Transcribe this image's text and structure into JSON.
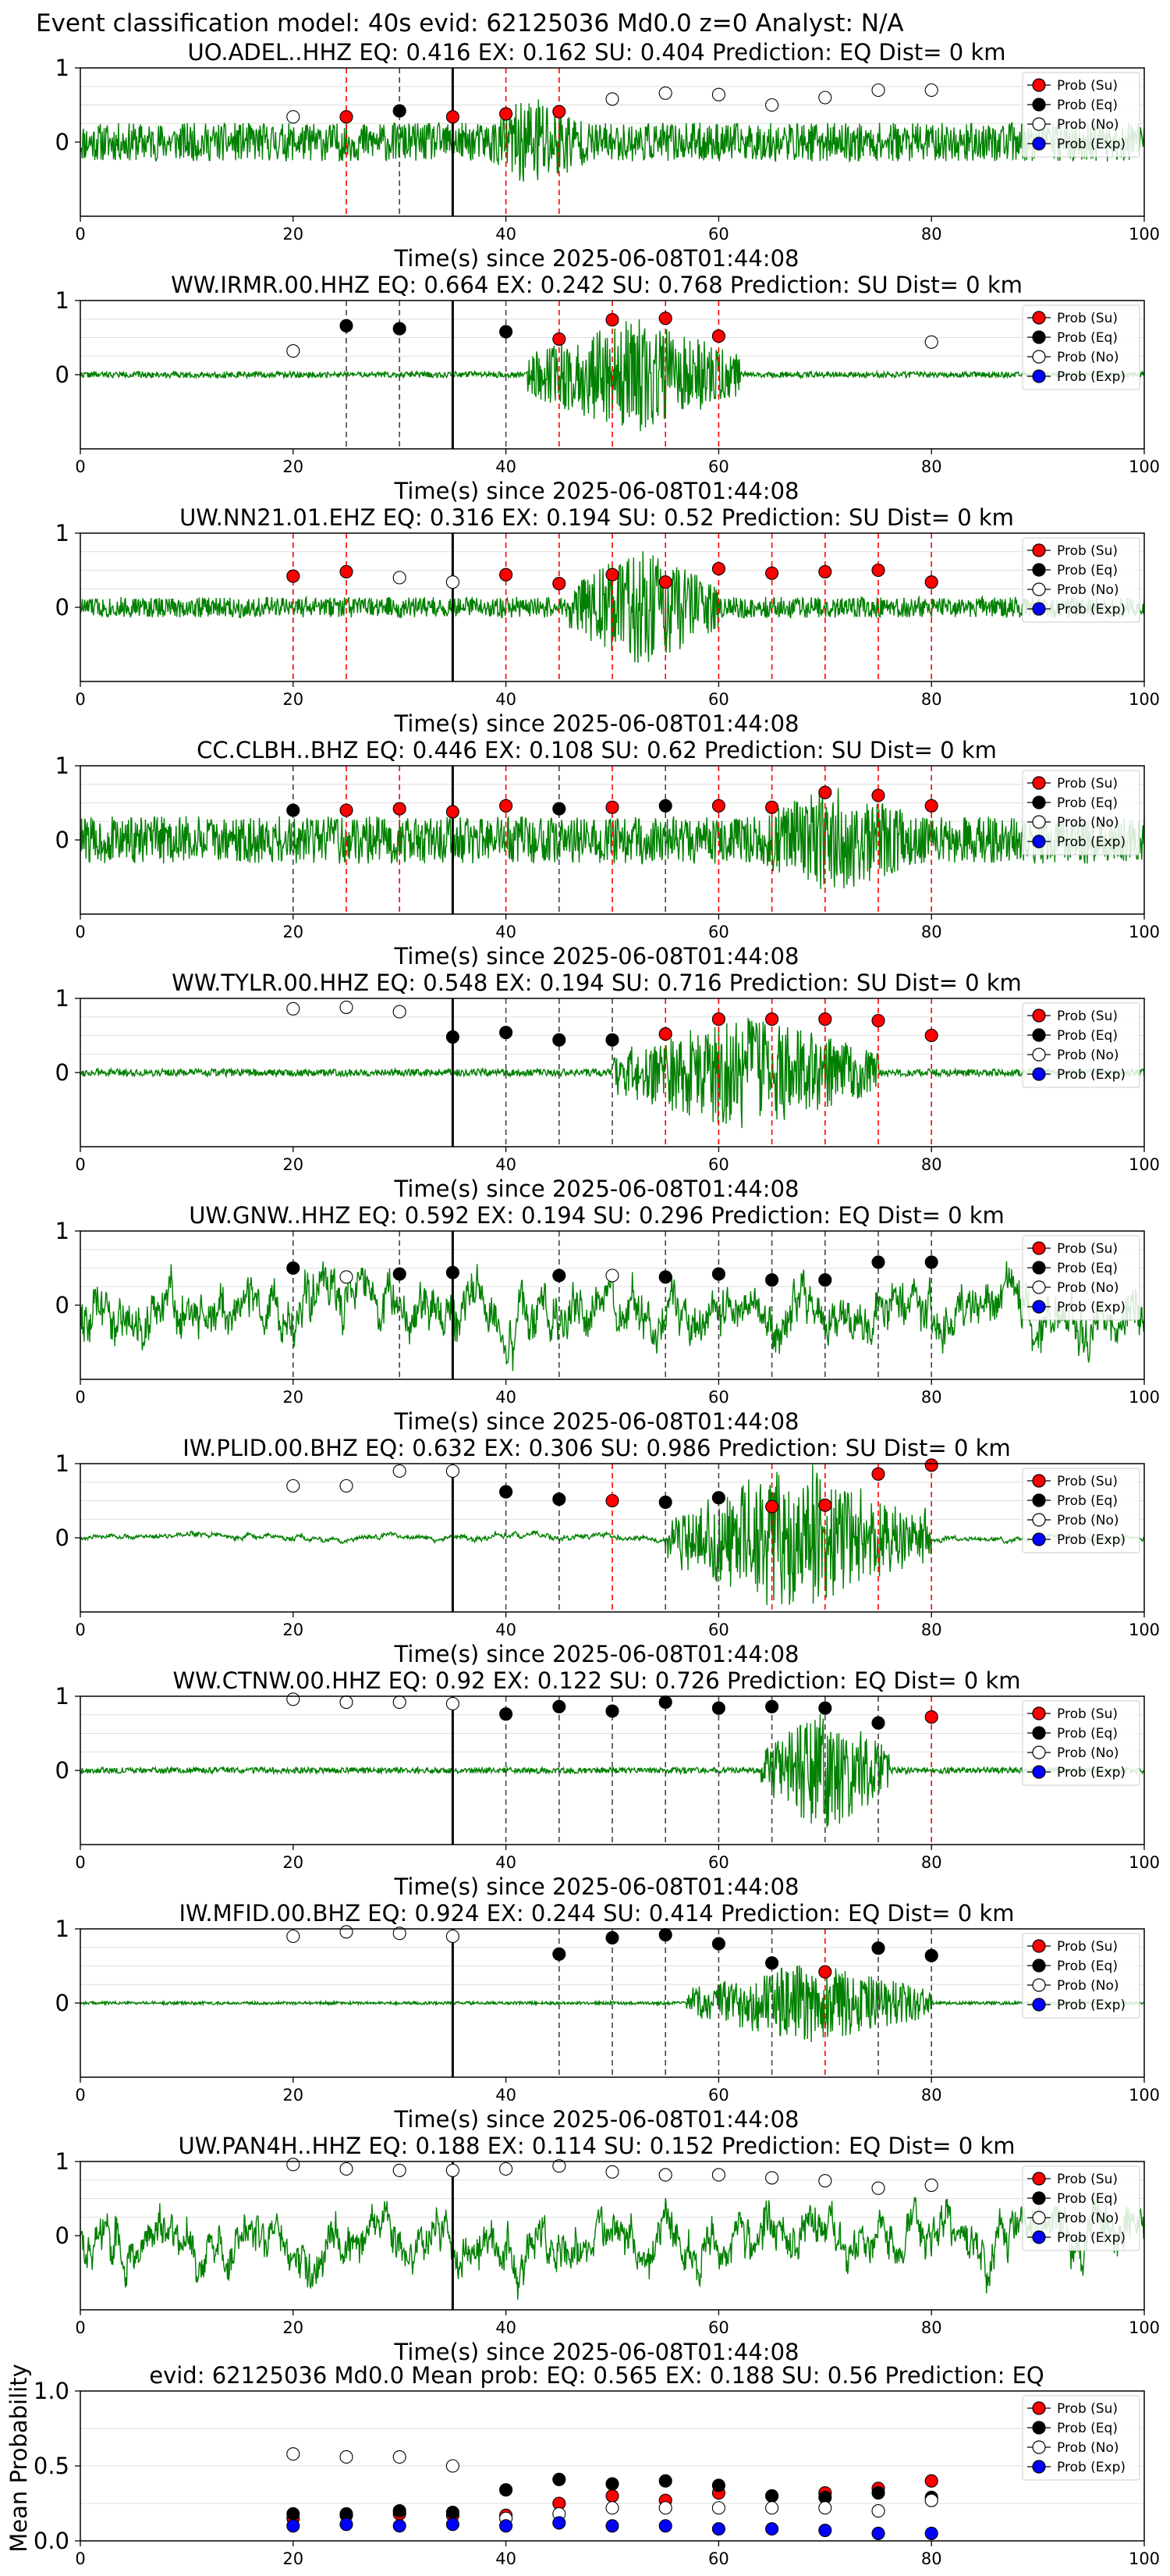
{
  "figure": {
    "title": "Event classification model: 40s evid: 62125036 Md0.0 z=0 Analyst: N/A"
  },
  "legend_labels": [
    "Prob (Su)",
    "Prob (Eq)",
    "Prob (No)",
    "Prob (Exp)"
  ],
  "colors": {
    "su": "#ff0000",
    "eq": "#000000",
    "no": "#ffffff",
    "exp": "#0000ff",
    "waveform": "#008000",
    "eq_line": "#444444",
    "su_line": "#ff0000",
    "grid": "#dddddd"
  },
  "chart_data": [
    {
      "type": "line",
      "title": "UO.ADEL..HHZ   EQ: 0.416  EX: 0.162  SU: 0.404   Prediction: EQ    Dist= 0 km",
      "xlabel": "Time(s) since 2025-06-08T01:44:08",
      "xlim": [
        0,
        100
      ],
      "ylim": [
        -1,
        1
      ],
      "xticks": [
        0,
        20,
        40,
        60,
        80,
        100
      ],
      "yticks": [
        1,
        0
      ],
      "pick_time": 35,
      "waveform": {
        "noise": 0.26,
        "burst_start": 38,
        "burst_end": 48,
        "burst_amp": 0.7,
        "low_freq": false,
        "seed": 11
      },
      "points": [
        {
          "x": 20,
          "y": 0.34,
          "class": "no"
        },
        {
          "x": 25,
          "y": 0.34,
          "class": "su"
        },
        {
          "x": 30,
          "y": 0.42,
          "class": "eq"
        },
        {
          "x": 35,
          "y": 0.34,
          "class": "su"
        },
        {
          "x": 40,
          "y": 0.38,
          "class": "su"
        },
        {
          "x": 45,
          "y": 0.41,
          "class": "su"
        },
        {
          "x": 50,
          "y": 0.58,
          "class": "no"
        },
        {
          "x": 55,
          "y": 0.66,
          "class": "no"
        },
        {
          "x": 60,
          "y": 0.64,
          "class": "no"
        },
        {
          "x": 65,
          "y": 0.5,
          "class": "no"
        },
        {
          "x": 70,
          "y": 0.6,
          "class": "no"
        },
        {
          "x": 75,
          "y": 0.7,
          "class": "no"
        },
        {
          "x": 80,
          "y": 0.7,
          "class": "no"
        }
      ]
    },
    {
      "type": "line",
      "title": "WW.IRMR.00.HHZ   EQ: 0.664  EX: 0.242  SU: 0.768   Prediction: SU    Dist= 0 km",
      "xlabel": "Time(s) since 2025-06-08T01:44:08",
      "xlim": [
        0,
        100
      ],
      "ylim": [
        -1,
        1
      ],
      "xticks": [
        0,
        20,
        40,
        60,
        80,
        100
      ],
      "yticks": [
        1,
        0
      ],
      "pick_time": 35,
      "waveform": {
        "noise": 0.04,
        "burst_start": 42,
        "burst_end": 62,
        "burst_amp": 0.8,
        "low_freq": false,
        "seed": 22
      },
      "points": [
        {
          "x": 20,
          "y": 0.32,
          "class": "no"
        },
        {
          "x": 25,
          "y": 0.66,
          "class": "eq"
        },
        {
          "x": 30,
          "y": 0.62,
          "class": "eq"
        },
        {
          "x": 40,
          "y": 0.58,
          "class": "eq"
        },
        {
          "x": 45,
          "y": 0.48,
          "class": "su"
        },
        {
          "x": 50,
          "y": 0.74,
          "class": "su"
        },
        {
          "x": 55,
          "y": 0.76,
          "class": "su"
        },
        {
          "x": 60,
          "y": 0.52,
          "class": "su"
        },
        {
          "x": 80,
          "y": 0.44,
          "class": "no"
        }
      ]
    },
    {
      "type": "line",
      "title": "UW.NN21.01.EHZ   EQ: 0.316  EX: 0.194  SU: 0.52   Prediction: SU    Dist= 0 km",
      "xlabel": "Time(s) since 2025-06-08T01:44:08",
      "xlim": [
        0,
        100
      ],
      "ylim": [
        -1,
        1
      ],
      "xticks": [
        0,
        20,
        40,
        60,
        80,
        100
      ],
      "yticks": [
        1,
        0
      ],
      "pick_time": 35,
      "waveform": {
        "noise": 0.14,
        "burst_start": 46,
        "burst_end": 60,
        "burst_amp": 0.85,
        "low_freq": false,
        "seed": 33
      },
      "points": [
        {
          "x": 20,
          "y": 0.42,
          "class": "su"
        },
        {
          "x": 25,
          "y": 0.48,
          "class": "su"
        },
        {
          "x": 30,
          "y": 0.4,
          "class": "no"
        },
        {
          "x": 35,
          "y": 0.34,
          "class": "no"
        },
        {
          "x": 40,
          "y": 0.44,
          "class": "su"
        },
        {
          "x": 45,
          "y": 0.32,
          "class": "su"
        },
        {
          "x": 50,
          "y": 0.44,
          "class": "su"
        },
        {
          "x": 55,
          "y": 0.34,
          "class": "su"
        },
        {
          "x": 60,
          "y": 0.52,
          "class": "su"
        },
        {
          "x": 65,
          "y": 0.46,
          "class": "su"
        },
        {
          "x": 70,
          "y": 0.48,
          "class": "su"
        },
        {
          "x": 75,
          "y": 0.5,
          "class": "su"
        },
        {
          "x": 80,
          "y": 0.34,
          "class": "su"
        }
      ]
    },
    {
      "type": "line",
      "title": "CC.CLBH..BHZ   EQ: 0.446  EX: 0.108  SU: 0.62   Prediction: SU    Dist= 0 km",
      "xlabel": "Time(s) since 2025-06-08T01:44:08",
      "xlim": [
        0,
        100
      ],
      "ylim": [
        -1,
        1
      ],
      "xticks": [
        0,
        20,
        40,
        60,
        80,
        100
      ],
      "yticks": [
        1,
        0
      ],
      "pick_time": 35,
      "waveform": {
        "noise": 0.32,
        "burst_start": 62,
        "burst_end": 80,
        "burst_amp": 0.75,
        "low_freq": false,
        "seed": 44
      },
      "points": [
        {
          "x": 20,
          "y": 0.4,
          "class": "eq"
        },
        {
          "x": 25,
          "y": 0.4,
          "class": "su"
        },
        {
          "x": 30,
          "y": 0.42,
          "class": "su"
        },
        {
          "x": 35,
          "y": 0.38,
          "class": "su"
        },
        {
          "x": 40,
          "y": 0.46,
          "class": "su"
        },
        {
          "x": 45,
          "y": 0.42,
          "class": "eq"
        },
        {
          "x": 50,
          "y": 0.44,
          "class": "su"
        },
        {
          "x": 55,
          "y": 0.46,
          "class": "eq"
        },
        {
          "x": 60,
          "y": 0.46,
          "class": "su"
        },
        {
          "x": 65,
          "y": 0.44,
          "class": "su"
        },
        {
          "x": 70,
          "y": 0.64,
          "class": "su"
        },
        {
          "x": 75,
          "y": 0.6,
          "class": "su"
        },
        {
          "x": 80,
          "y": 0.46,
          "class": "su"
        }
      ]
    },
    {
      "type": "line",
      "title": "WW.TYLR.00.HHZ   EQ: 0.548  EX: 0.194  SU: 0.716   Prediction: SU    Dist= 0 km",
      "xlabel": "Time(s) since 2025-06-08T01:44:08",
      "xlim": [
        0,
        100
      ],
      "ylim": [
        -1,
        1
      ],
      "xticks": [
        0,
        20,
        40,
        60,
        80,
        100
      ],
      "yticks": [
        1,
        0
      ],
      "pick_time": 35,
      "waveform": {
        "noise": 0.05,
        "burst_start": 50,
        "burst_end": 75,
        "burst_amp": 0.8,
        "low_freq": false,
        "seed": 55
      },
      "points": [
        {
          "x": 20,
          "y": 0.86,
          "class": "no"
        },
        {
          "x": 25,
          "y": 0.88,
          "class": "no"
        },
        {
          "x": 30,
          "y": 0.82,
          "class": "no"
        },
        {
          "x": 35,
          "y": 0.48,
          "class": "eq"
        },
        {
          "x": 40,
          "y": 0.54,
          "class": "eq"
        },
        {
          "x": 45,
          "y": 0.44,
          "class": "eq"
        },
        {
          "x": 50,
          "y": 0.44,
          "class": "eq"
        },
        {
          "x": 55,
          "y": 0.52,
          "class": "su"
        },
        {
          "x": 60,
          "y": 0.72,
          "class": "su"
        },
        {
          "x": 65,
          "y": 0.72,
          "class": "su"
        },
        {
          "x": 70,
          "y": 0.72,
          "class": "su"
        },
        {
          "x": 75,
          "y": 0.7,
          "class": "su"
        },
        {
          "x": 80,
          "y": 0.5,
          "class": "su"
        }
      ]
    },
    {
      "type": "line",
      "title": "UW.GNW..HHZ   EQ: 0.592  EX: 0.194  SU: 0.296   Prediction: EQ    Dist= 0 km",
      "xlabel": "Time(s) since 2025-06-08T01:44:08",
      "xlim": [
        0,
        100
      ],
      "ylim": [
        -1,
        1
      ],
      "xticks": [
        0,
        20,
        40,
        60,
        80,
        100
      ],
      "yticks": [
        1,
        0
      ],
      "pick_time": 35,
      "waveform": {
        "noise": 0.55,
        "burst_start": 0,
        "burst_end": 0,
        "burst_amp": 0,
        "low_freq": true,
        "seed": 66
      },
      "points": [
        {
          "x": 20,
          "y": 0.5,
          "class": "eq"
        },
        {
          "x": 25,
          "y": 0.38,
          "class": "no"
        },
        {
          "x": 30,
          "y": 0.42,
          "class": "eq"
        },
        {
          "x": 35,
          "y": 0.44,
          "class": "eq"
        },
        {
          "x": 45,
          "y": 0.4,
          "class": "eq"
        },
        {
          "x": 50,
          "y": 0.4,
          "class": "no"
        },
        {
          "x": 55,
          "y": 0.38,
          "class": "eq"
        },
        {
          "x": 60,
          "y": 0.42,
          "class": "eq"
        },
        {
          "x": 65,
          "y": 0.34,
          "class": "eq"
        },
        {
          "x": 70,
          "y": 0.34,
          "class": "eq"
        },
        {
          "x": 75,
          "y": 0.58,
          "class": "eq"
        },
        {
          "x": 80,
          "y": 0.58,
          "class": "eq"
        }
      ]
    },
    {
      "type": "line",
      "title": "IW.PLID.00.BHZ   EQ: 0.632  EX: 0.306  SU: 0.986   Prediction: SU    Dist= 0 km",
      "xlabel": "Time(s) since 2025-06-08T01:44:08",
      "xlim": [
        0,
        100
      ],
      "ylim": [
        -1,
        1
      ],
      "xticks": [
        0,
        20,
        40,
        60,
        80,
        100
      ],
      "yticks": [
        1,
        0
      ],
      "pick_time": 35,
      "waveform": {
        "noise": 0.06,
        "burst_start": 55,
        "burst_end": 80,
        "burst_amp": 0.85,
        "low_freq": true,
        "seed": 77
      },
      "points": [
        {
          "x": 20,
          "y": 0.7,
          "class": "no"
        },
        {
          "x": 25,
          "y": 0.7,
          "class": "no"
        },
        {
          "x": 30,
          "y": 0.9,
          "class": "no"
        },
        {
          "x": 35,
          "y": 0.9,
          "class": "no"
        },
        {
          "x": 40,
          "y": 0.62,
          "class": "eq"
        },
        {
          "x": 45,
          "y": 0.52,
          "class": "eq"
        },
        {
          "x": 50,
          "y": 0.5,
          "class": "su"
        },
        {
          "x": 55,
          "y": 0.48,
          "class": "eq"
        },
        {
          "x": 60,
          "y": 0.54,
          "class": "eq"
        },
        {
          "x": 65,
          "y": 0.42,
          "class": "su"
        },
        {
          "x": 70,
          "y": 0.44,
          "class": "su"
        },
        {
          "x": 75,
          "y": 0.86,
          "class": "su"
        },
        {
          "x": 80,
          "y": 0.98,
          "class": "su"
        }
      ]
    },
    {
      "type": "line",
      "title": "WW.CTNW.00.HHZ   EQ: 0.92  EX: 0.122  SU: 0.726   Prediction: EQ    Dist= 0 km",
      "xlabel": "Time(s) since 2025-06-08T01:44:08",
      "xlim": [
        0,
        100
      ],
      "ylim": [
        -1,
        1
      ],
      "xticks": [
        0,
        20,
        40,
        60,
        80,
        100
      ],
      "yticks": [
        1,
        0
      ],
      "pick_time": 35,
      "waveform": {
        "noise": 0.04,
        "burst_start": 64,
        "burst_end": 76,
        "burst_amp": 0.85,
        "low_freq": false,
        "seed": 88
      },
      "points": [
        {
          "x": 20,
          "y": 0.96,
          "class": "no"
        },
        {
          "x": 25,
          "y": 0.92,
          "class": "no"
        },
        {
          "x": 30,
          "y": 0.92,
          "class": "no"
        },
        {
          "x": 35,
          "y": 0.9,
          "class": "no"
        },
        {
          "x": 40,
          "y": 0.76,
          "class": "eq"
        },
        {
          "x": 45,
          "y": 0.86,
          "class": "eq"
        },
        {
          "x": 50,
          "y": 0.8,
          "class": "eq"
        },
        {
          "x": 55,
          "y": 0.92,
          "class": "eq"
        },
        {
          "x": 60,
          "y": 0.84,
          "class": "eq"
        },
        {
          "x": 65,
          "y": 0.86,
          "class": "eq"
        },
        {
          "x": 70,
          "y": 0.84,
          "class": "eq"
        },
        {
          "x": 75,
          "y": 0.64,
          "class": "eq"
        },
        {
          "x": 80,
          "y": 0.72,
          "class": "su"
        }
      ]
    },
    {
      "type": "line",
      "title": "IW.MFID.00.BHZ   EQ: 0.924  EX: 0.244  SU: 0.414   Prediction: EQ    Dist= 0 km",
      "xlabel": "Time(s) since 2025-06-08T01:44:08",
      "xlim": [
        0,
        100
      ],
      "ylim": [
        -1,
        1
      ],
      "xticks": [
        0,
        20,
        40,
        60,
        80,
        100
      ],
      "yticks": [
        1,
        0
      ],
      "pick_time": 35,
      "waveform": {
        "noise": 0.02,
        "burst_start": 57,
        "burst_end": 80,
        "burst_amp": 0.55,
        "low_freq": false,
        "seed": 99
      },
      "points": [
        {
          "x": 20,
          "y": 0.9,
          "class": "no"
        },
        {
          "x": 25,
          "y": 0.96,
          "class": "no"
        },
        {
          "x": 30,
          "y": 0.94,
          "class": "no"
        },
        {
          "x": 35,
          "y": 0.9,
          "class": "no"
        },
        {
          "x": 45,
          "y": 0.66,
          "class": "eq"
        },
        {
          "x": 50,
          "y": 0.88,
          "class": "eq"
        },
        {
          "x": 55,
          "y": 0.92,
          "class": "eq"
        },
        {
          "x": 60,
          "y": 0.8,
          "class": "eq"
        },
        {
          "x": 65,
          "y": 0.54,
          "class": "eq"
        },
        {
          "x": 70,
          "y": 0.42,
          "class": "su"
        },
        {
          "x": 75,
          "y": 0.74,
          "class": "eq"
        },
        {
          "x": 80,
          "y": 0.64,
          "class": "eq"
        }
      ]
    },
    {
      "type": "line",
      "title": "UW.PAN4H..HHZ   EQ: 0.188  EX: 0.114  SU: 0.152   Prediction: EQ    Dist= 0 km",
      "xlabel": "Time(s) since 2025-06-08T01:44:08",
      "xlim": [
        0,
        100
      ],
      "ylim": [
        -1,
        1
      ],
      "xticks": [
        0,
        20,
        40,
        60,
        80,
        100
      ],
      "yticks": [
        1,
        0
      ],
      "pick_time": 35,
      "waveform": {
        "noise": 0.5,
        "burst_start": 0,
        "burst_end": 0,
        "burst_amp": 0,
        "low_freq": true,
        "seed": 111
      },
      "points": [
        {
          "x": 20,
          "y": 0.96,
          "class": "no"
        },
        {
          "x": 25,
          "y": 0.9,
          "class": "no"
        },
        {
          "x": 30,
          "y": 0.88,
          "class": "no"
        },
        {
          "x": 35,
          "y": 0.88,
          "class": "no"
        },
        {
          "x": 40,
          "y": 0.9,
          "class": "no"
        },
        {
          "x": 45,
          "y": 0.94,
          "class": "no"
        },
        {
          "x": 50,
          "y": 0.86,
          "class": "no"
        },
        {
          "x": 55,
          "y": 0.82,
          "class": "no"
        },
        {
          "x": 60,
          "y": 0.82,
          "class": "no"
        },
        {
          "x": 65,
          "y": 0.78,
          "class": "no"
        },
        {
          "x": 70,
          "y": 0.74,
          "class": "no"
        },
        {
          "x": 75,
          "y": 0.64,
          "class": "no"
        },
        {
          "x": 80,
          "y": 0.68,
          "class": "no"
        }
      ]
    },
    {
      "type": "scatter",
      "title": "evid: 62125036  Md0.0   Mean prob:   EQ: 0.565  EX: 0.188  SU: 0.56   Prediction: EQ",
      "xlabel": "",
      "ylabel": "Mean Probability",
      "xlim": [
        0,
        100
      ],
      "ylim": [
        0,
        1
      ],
      "xticks": [
        0,
        20,
        40,
        60,
        80,
        100
      ],
      "yticks": [
        0.0,
        0.5,
        1.0
      ],
      "x": [
        20,
        25,
        30,
        35,
        40,
        45,
        50,
        55,
        60,
        65,
        70,
        75,
        80
      ],
      "series": [
        {
          "name": "Prob (Su)",
          "class": "su",
          "values": [
            0.15,
            0.17,
            0.18,
            0.17,
            0.17,
            0.25,
            0.3,
            0.27,
            0.32,
            0.3,
            0.32,
            0.35,
            0.4
          ]
        },
        {
          "name": "Prob (Eq)",
          "class": "eq",
          "values": [
            0.18,
            0.18,
            0.2,
            0.19,
            0.34,
            0.41,
            0.38,
            0.4,
            0.37,
            0.3,
            0.29,
            0.32,
            0.29
          ]
        },
        {
          "name": "Prob (No)",
          "class": "no",
          "values": [
            0.58,
            0.56,
            0.56,
            0.5,
            0.15,
            0.18,
            0.22,
            0.22,
            0.22,
            0.22,
            0.22,
            0.2,
            0.27
          ]
        },
        {
          "name": "Prob (Exp)",
          "class": "exp",
          "values": [
            0.1,
            0.11,
            0.1,
            0.11,
            0.1,
            0.12,
            0.1,
            0.1,
            0.08,
            0.08,
            0.07,
            0.05,
            0.05
          ]
        }
      ]
    }
  ]
}
